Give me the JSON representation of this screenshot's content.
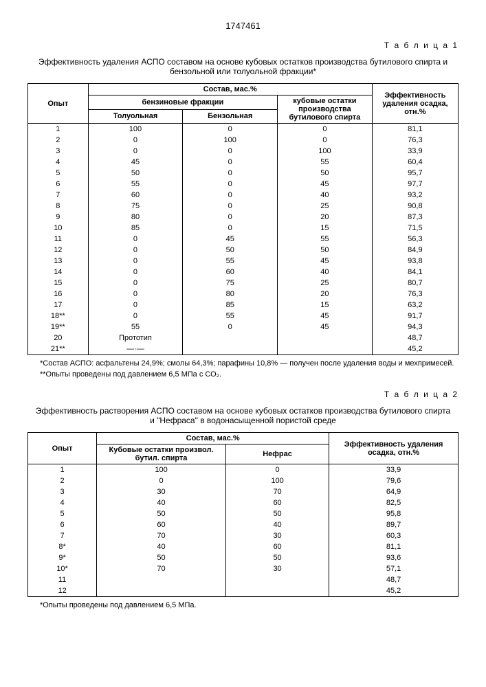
{
  "doc_number": "1747461",
  "table1": {
    "label": "Т а б л и ц а 1",
    "title": "Эффективность удаления АСПО составом на основе кубовых остатков производства бутилового спирта и бензольной или толуольной фракции*",
    "h_opyt": "Опыт",
    "h_sostav": "Состав, мас.%",
    "h_eff": "Эффективность удаления осадка, отн.%",
    "h_benzfrak": "бензиновые фракции",
    "h_kub": "кубовые остатки производства бутилового спирта",
    "h_tol": "Толуольная",
    "h_benz": "Бензольная",
    "rows": [
      {
        "n": "1",
        "a": "100",
        "b": "0",
        "c": "0",
        "d": "81,1"
      },
      {
        "n": "2",
        "a": "0",
        "b": "100",
        "c": "0",
        "d": "76,3"
      },
      {
        "n": "3",
        "a": "0",
        "b": "0",
        "c": "100",
        "d": "33,9"
      },
      {
        "n": "4",
        "a": "45",
        "b": "0",
        "c": "55",
        "d": "60,4"
      },
      {
        "n": "5",
        "a": "50",
        "b": "0",
        "c": "50",
        "d": "95,7"
      },
      {
        "n": "6",
        "a": "55",
        "b": "0",
        "c": "45",
        "d": "97,7"
      },
      {
        "n": "7",
        "a": "60",
        "b": "0",
        "c": "40",
        "d": "93,2"
      },
      {
        "n": "8",
        "a": "75",
        "b": "0",
        "c": "25",
        "d": "90,8"
      },
      {
        "n": "9",
        "a": "80",
        "b": "0",
        "c": "20",
        "d": "87,3"
      },
      {
        "n": "10",
        "a": "85",
        "b": "0",
        "c": "15",
        "d": "71,5"
      },
      {
        "n": "11",
        "a": "0",
        "b": "45",
        "c": "55",
        "d": "56,3"
      },
      {
        "n": "12",
        "a": "0",
        "b": "50",
        "c": "50",
        "d": "84,9"
      },
      {
        "n": "13",
        "a": "0",
        "b": "55",
        "c": "45",
        "d": "93,8"
      },
      {
        "n": "14",
        "a": "0",
        "b": "60",
        "c": "40",
        "d": "84,1"
      },
      {
        "n": "15",
        "a": "0",
        "b": "75",
        "c": "25",
        "d": "80,7"
      },
      {
        "n": "16",
        "a": "0",
        "b": "80",
        "c": "20",
        "d": "76,3"
      },
      {
        "n": "17",
        "a": "0",
        "b": "85",
        "c": "15",
        "d": "63,2"
      },
      {
        "n": "18**",
        "a": "0",
        "b": "55",
        "c": "45",
        "d": "91,7"
      },
      {
        "n": "19**",
        "a": "55",
        "b": "0",
        "c": "45",
        "d": "94,3"
      },
      {
        "n": "20",
        "a": "Прототип",
        "b": "",
        "c": "",
        "d": "48,7"
      },
      {
        "n": "21**",
        "a": "—·—",
        "b": "",
        "c": "",
        "d": "45,2"
      }
    ],
    "foot1": "*Состав АСПО: асфальтены 24,9%; смолы 64,3%; парафины 10,8% — получен после удаления воды и мехпримесей.",
    "foot2": "**Опыты проведены под давлением 6,5 МПа с СО₂."
  },
  "table2": {
    "label": "Т а б л и ц а 2",
    "title": "Эффективность растворения АСПО составом на основе кубовых остатков производства бутилового спирта и \"Нефраса\" в водонасыщенной пористой среде",
    "h_opyt": "Опыт",
    "h_sostav": "Состав, мас.%",
    "h_eff": "Эффективность удаления осадка, отн.%",
    "h_kub": "Кубовые остатки произвол. бутил. спирта",
    "h_nefras": "Нефрас",
    "rows": [
      {
        "n": "1",
        "a": "100",
        "b": "0",
        "c": "33,9"
      },
      {
        "n": "2",
        "a": "0",
        "b": "100",
        "c": "79,6"
      },
      {
        "n": "3",
        "a": "30",
        "b": "70",
        "c": "64,9"
      },
      {
        "n": "4",
        "a": "40",
        "b": "60",
        "c": "82,5"
      },
      {
        "n": "5",
        "a": "50",
        "b": "50",
        "c": "95,8"
      },
      {
        "n": "6",
        "a": "60",
        "b": "40",
        "c": "89,7"
      },
      {
        "n": "7",
        "a": "70",
        "b": "30",
        "c": "60,3"
      },
      {
        "n": "8*",
        "a": "40",
        "b": "60",
        "c": "81,1"
      },
      {
        "n": "9*",
        "a": "50",
        "b": "50",
        "c": "93,6"
      },
      {
        "n": "10*",
        "a": "70",
        "b": "30",
        "c": "57,1"
      },
      {
        "n": "11",
        "a": "",
        "b": "",
        "c": "48,7"
      },
      {
        "n": "12",
        "a": "",
        "b": "",
        "c": "45,2"
      }
    ],
    "foot": "*Опыты проведены под давлением 6,5 МПа."
  }
}
